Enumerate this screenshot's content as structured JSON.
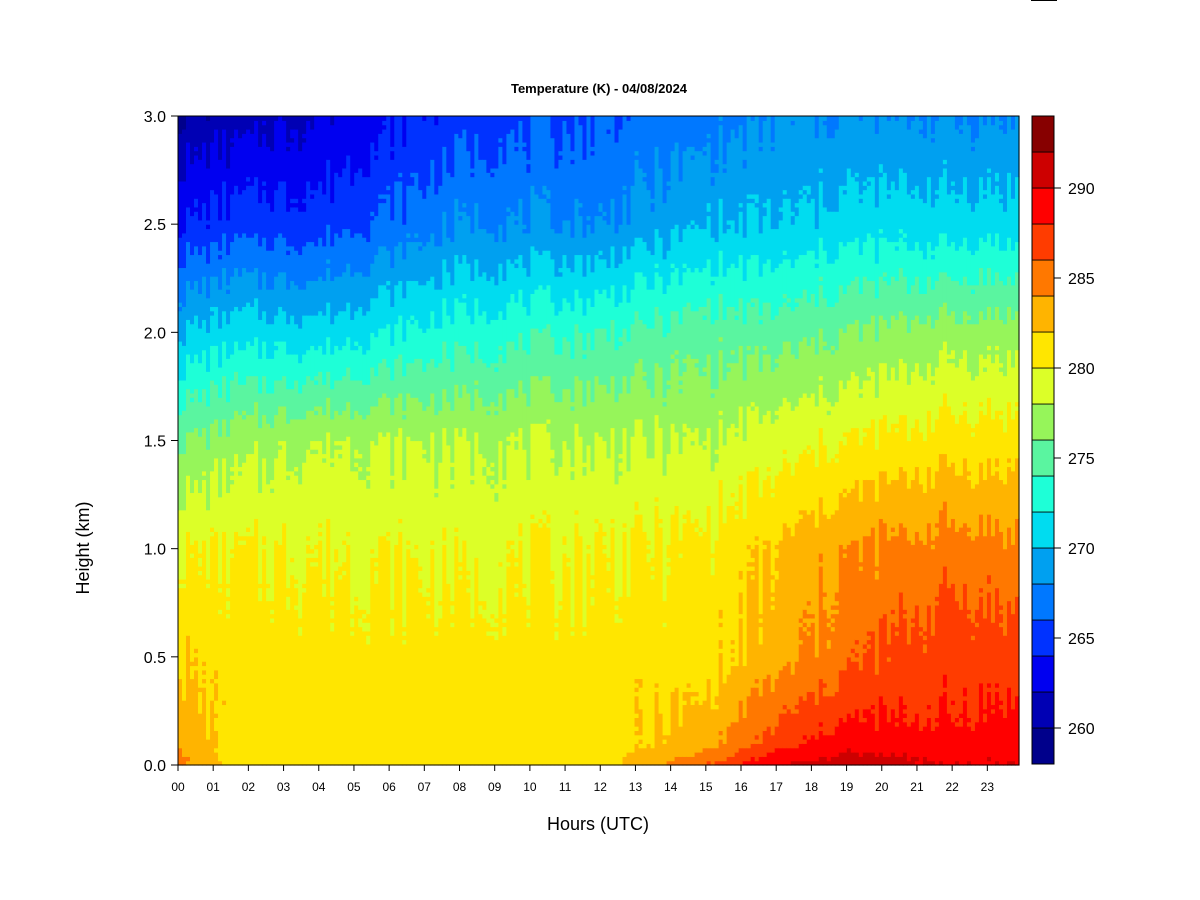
{
  "chart_data": {
    "type": "heatmap",
    "title": "Temperature (K) - 04/08/2024",
    "xlabel": "Hours (UTC)",
    "ylabel": "Height (km)",
    "x_ticks": [
      "00",
      "01",
      "02",
      "03",
      "04",
      "05",
      "06",
      "07",
      "08",
      "09",
      "10",
      "11",
      "12",
      "13",
      "14",
      "15",
      "16",
      "17",
      "18",
      "19",
      "20",
      "21",
      "22",
      "23"
    ],
    "x_range": [
      0,
      23.9
    ],
    "y_ticks": [
      "0.0",
      "0.5",
      "1.0",
      "1.5",
      "2.0",
      "2.5",
      "3.0"
    ],
    "y_range": [
      0,
      3
    ],
    "colorbar": {
      "range": [
        258,
        294
      ],
      "step": 2,
      "tick_labels": [
        "260",
        "265",
        "270",
        "275",
        "280",
        "285",
        "290"
      ],
      "tick_values": [
        260,
        265,
        270,
        275,
        280,
        285,
        290
      ],
      "colors": [
        "#00008b",
        "#0000b4",
        "#0000f0",
        "#0032ff",
        "#0078ff",
        "#00a0f0",
        "#00dcf0",
        "#1effd7",
        "#5af5a0",
        "#96f55a",
        "#dcff28",
        "#ffe600",
        "#ffb400",
        "#ff7800",
        "#ff3c00",
        "#ff0000",
        "#cd0000",
        "#870000"
      ]
    },
    "grid": false,
    "profiles": [
      {
        "hour": 0,
        "heights": [
          0,
          0.25,
          0.5,
          1.0,
          1.5,
          2.0,
          2.5,
          3.0
        ],
        "values": [
          285,
          283,
          282,
          280,
          276,
          270,
          264,
          260
        ]
      },
      {
        "hour": 1.5,
        "heights": [
          0,
          0.5,
          1.0,
          1.5,
          2.0,
          2.5,
          3.0
        ],
        "values": [
          281,
          281,
          280,
          277,
          271,
          265,
          261
        ]
      },
      {
        "hour": 4,
        "heights": [
          0,
          0.5,
          1.0,
          1.5,
          2.0,
          2.5,
          3.0
        ],
        "values": [
          281,
          281,
          280,
          278,
          271,
          265,
          262
        ]
      },
      {
        "hour": 8,
        "heights": [
          0,
          0.5,
          1.0,
          1.5,
          2.0,
          2.5,
          3.0
        ],
        "values": [
          281,
          281,
          279.5,
          278,
          273,
          268,
          265
        ]
      },
      {
        "hour": 12,
        "heights": [
          0,
          0.5,
          1.0,
          1.5,
          2.0,
          2.5,
          3.0
        ],
        "values": [
          281,
          281,
          280,
          278,
          274,
          268,
          266
        ]
      },
      {
        "hour": 15,
        "heights": [
          0,
          0.1,
          0.3,
          0.5,
          1.0,
          1.5,
          2.0,
          2.5,
          3.0
        ],
        "values": [
          286,
          283,
          282,
          281,
          280.5,
          278,
          275,
          270,
          267
        ]
      },
      {
        "hour": 17,
        "heights": [
          0,
          0.1,
          0.5,
          1.0,
          1.5,
          2.0,
          2.5,
          3.0
        ],
        "values": [
          290,
          287,
          283,
          282,
          279,
          275,
          270,
          268
        ]
      },
      {
        "hour": 19,
        "heights": [
          0,
          0.2,
          0.5,
          1.0,
          1.5,
          2.0,
          2.5,
          3.0
        ],
        "values": [
          291,
          288,
          285.5,
          284,
          280,
          276,
          271,
          268
        ]
      },
      {
        "hour": 22,
        "heights": [
          0,
          0.2,
          0.6,
          1.0,
          1.5,
          2.0,
          2.5,
          3.0
        ],
        "values": [
          290,
          288,
          287,
          285,
          281,
          277,
          271,
          268
        ]
      },
      {
        "hour": 23.9,
        "heights": [
          0,
          0.3,
          0.6,
          1.0,
          1.5,
          2.0,
          2.5,
          3.0
        ],
        "values": [
          290,
          288,
          286.5,
          284.5,
          281,
          277,
          271,
          268
        ]
      }
    ]
  }
}
